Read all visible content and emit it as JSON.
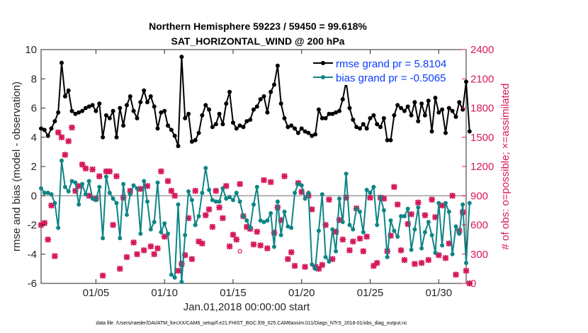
{
  "chart_data": {
    "type": "line",
    "title": "Northern Hemisphere 59223 / 59450 = 99.618%",
    "subtitle": "SAT_HORIZONTAL_WIND @ 200 hPa",
    "xlabel": "Jan.01,2018 00:00:00 start",
    "ylabel": "rmse and bias (model - observation)",
    "y2label": "# of obs: o=possible; ×=assimilated",
    "xlim": [
      1,
      32
    ],
    "ylim": [
      -6,
      10
    ],
    "y2lim": [
      0,
      2400
    ],
    "x_ticks": [
      5,
      10,
      15,
      20,
      25,
      30
    ],
    "x_tick_labels": [
      "01/05",
      "01/10",
      "01/15",
      "01/20",
      "01/25",
      "01/30"
    ],
    "y_ticks": [
      -6,
      -4,
      -2,
      0,
      2,
      4,
      6,
      8,
      10
    ],
    "y_tick_labels": [
      "-6",
      "-4",
      "-2",
      "0",
      "2",
      "4",
      "6",
      "8",
      "10"
    ],
    "y2_ticks": [
      0,
      300,
      600,
      900,
      1200,
      1500,
      1800,
      2100,
      2400
    ],
    "y2_tick_labels": [
      "0",
      "300",
      "600",
      "900",
      "1200",
      "1500",
      "1800",
      "2100",
      "2400"
    ],
    "x_start": 1.0,
    "x_step": 0.25,
    "series": [
      {
        "name": "rmse",
        "legend": "rmse grand pr = 5.8104",
        "color": "#000000",
        "values": [
          4.6,
          4.5,
          4.1,
          4.6,
          5.1,
          5.7,
          9.1,
          6.8,
          7.2,
          5.8,
          5.6,
          5.7,
          5.8,
          6.0,
          6.1,
          6.2,
          5.8,
          6.3,
          4.0,
          5.5,
          5.3,
          5.8,
          4.0,
          6.0,
          4.8,
          6.2,
          6.8,
          5.8,
          5.3,
          6.4,
          7.2,
          6.4,
          6.8,
          6.1,
          4.6,
          5.7,
          5.8,
          4.8,
          4.5,
          4.1,
          3.4,
          9.5,
          5.3,
          5.6,
          3.7,
          3.8,
          4.3,
          5.5,
          6.2,
          5.9,
          4.7,
          4.9,
          5.6,
          4.9,
          6.3,
          7.1,
          5.0,
          4.6,
          4.8,
          4.7,
          5.1,
          5.2,
          5.9,
          6.1,
          6.6,
          6.8,
          5.7,
          7.1,
          7.6,
          8.9,
          6.3,
          5.3,
          4.7,
          4.8,
          4.6,
          4.3,
          4.6,
          4.4,
          4.3,
          4.1,
          4.2,
          5.9,
          5.3,
          5.3,
          5.6,
          5.6,
          5.7,
          5.8,
          6.6,
          7.8,
          6.0,
          5.2,
          4.7,
          4.6,
          4.9,
          4.6,
          5.3,
          5.5,
          4.9,
          4.7,
          5.3,
          3.8,
          3.8,
          5.5,
          6.2,
          6.0,
          5.8,
          6.1,
          5.5,
          6.4,
          5.1,
          6.3,
          5.5,
          6.5,
          4.4,
          6.7,
          5.7,
          5.9,
          4.3,
          6.0,
          5.8,
          5.4,
          6.4,
          5.9,
          7.8,
          4.4
        ],
        "bias": false
      },
      {
        "name": "bias",
        "legend": "bias grand pr = -0.5065",
        "color": "#0e8585",
        "values": [
          0.5,
          0.2,
          0.2,
          0.1,
          -0.5,
          -2.2,
          2.4,
          0.6,
          0.3,
          1.0,
          0.9,
          -0.6,
          0.8,
          0.1,
          1.0,
          -0.2,
          -0.3,
          0.6,
          -2.9,
          1.3,
          0.2,
          -0.2,
          -0.5,
          -2.9,
          0.8,
          -1.3,
          0.1,
          0.7,
          0.5,
          -2.6,
          1.0,
          -0.4,
          -2.3,
          -1.8,
          0.9,
          -2.5,
          -1.9,
          -2.6,
          -5.4,
          -5.6,
          -0.6,
          -5.9,
          -2.7,
          0.3,
          -0.3,
          -2.0,
          -1.4,
          0.2,
          1.9,
          0.4,
          -0.3,
          -0.4,
          -0.4,
          0.5,
          -0.2,
          -0.1,
          -0.3,
          0.2,
          -0.4,
          -1.4,
          -1.7,
          -2.2,
          -0.6,
          0.6,
          -1.7,
          -1.8,
          -1.7,
          -1.2,
          -3.5,
          -0.4,
          -2.7,
          -1.1,
          -2.1,
          -2.2,
          0.2,
          0.8,
          0.7,
          -0.2,
          0.2,
          -4.7,
          -5.0,
          -2.4,
          0.1,
          -4.2,
          -4.5,
          -2.3,
          -3.8,
          -0.2,
          -1.8,
          1.5,
          -2.0,
          -2.3,
          -0.9,
          -1.1,
          -2.5,
          0.4,
          0.2,
          0.6,
          -2.0,
          -0.1,
          -1.0,
          -4.2,
          -1.7,
          -2.4,
          -2.8,
          -1.4,
          -1.4,
          -0.9,
          -3.7,
          -2.3,
          -0.8,
          -3.6,
          -2.5,
          -1.8,
          -2.7,
          -3.9,
          -0.5,
          -3.4,
          -0.5,
          -1.1,
          -4.0,
          -2.1,
          -2.6,
          -0.6,
          -4.6,
          -0.5
        ]
      }
    ],
    "obs_assimilated": [
      600,
      620,
      450,
      800,
      280,
      1550,
      1500,
      1320,
      1460,
      1600,
      950,
      1000,
      1220,
      1180,
      900,
      1170,
      870,
      1100,
      80,
      1150,
      1150,
      600,
      1100,
      150,
      880,
      270,
      950,
      420,
      300,
      970,
      340,
      1000,
      380,
      300,
      360,
      1150,
      480,
      1050,
      950,
      900,
      130,
      200,
      290,
      670,
      250,
      950,
      430,
      410,
      700,
      760,
      580,
      950,
      780,
      670,
      1000,
      380,
      500,
      450,
      1020,
      690,
      580,
      560,
      400,
      530,
      390,
      1060,
      360,
      1040,
      520,
      780,
      650,
      1100,
      250,
      320,
      180,
      1030,
      940,
      170,
      900,
      760,
      170,
      150,
      190,
      600,
      860,
      250,
      530,
      650,
      450,
      880,
      340,
      430,
      770,
      460,
      330,
      480,
      880,
      180,
      210,
      880,
      870,
      330,
      490,
      990,
      810,
      340,
      240,
      610,
      710,
      200,
      830,
      210,
      700,
      240,
      860,
      680,
      290,
      800,
      260,
      410,
      900,
      90,
      540,
      730,
      130,
      0
    ],
    "obs_possible_marker": {
      "x": 15.5,
      "y2": 330,
      "label": "o"
    },
    "footer": "data file: /Users/raeder/DAI/ATM_forcXX/CAM6_setup/f.e21.FHIST_BGC.f09_025.CAM6assim.011/Diags_NTrS_2018-01/obs_diag_output.nc",
    "colors": {
      "rmse": "#000000",
      "bias": "#0e8585",
      "obs": "#d6195c",
      "zero_line": "#b3b3b3",
      "legend_text": "#0a3cff"
    }
  }
}
